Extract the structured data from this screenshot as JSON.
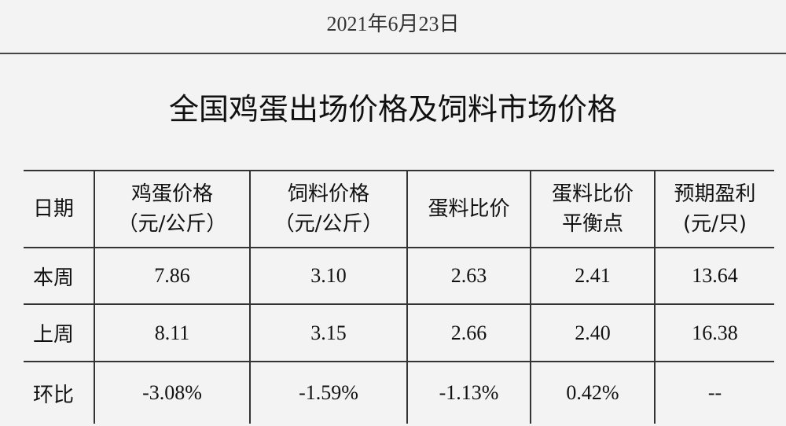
{
  "header": {
    "date": "2021年6月23日"
  },
  "title": "全国鸡蛋出场价格及饲料市场价格",
  "table": {
    "columns": [
      [
        "日期"
      ],
      [
        "鸡蛋价格",
        "（元/公斤）"
      ],
      [
        "饲料价格",
        "（元/公斤）"
      ],
      [
        "蛋料比价"
      ],
      [
        "蛋料比价",
        "平衡点"
      ],
      [
        "预期盈利",
        "(元/只)"
      ]
    ],
    "rows": [
      [
        "本周",
        "7.86",
        "3.10",
        "2.63",
        "2.41",
        "13.64"
      ],
      [
        "上周",
        "8.11",
        "3.15",
        "2.66",
        "2.40",
        "16.38"
      ],
      [
        "环比",
        "-3.08%",
        "-1.59%",
        "-1.13%",
        "0.42%",
        "--"
      ]
    ]
  }
}
